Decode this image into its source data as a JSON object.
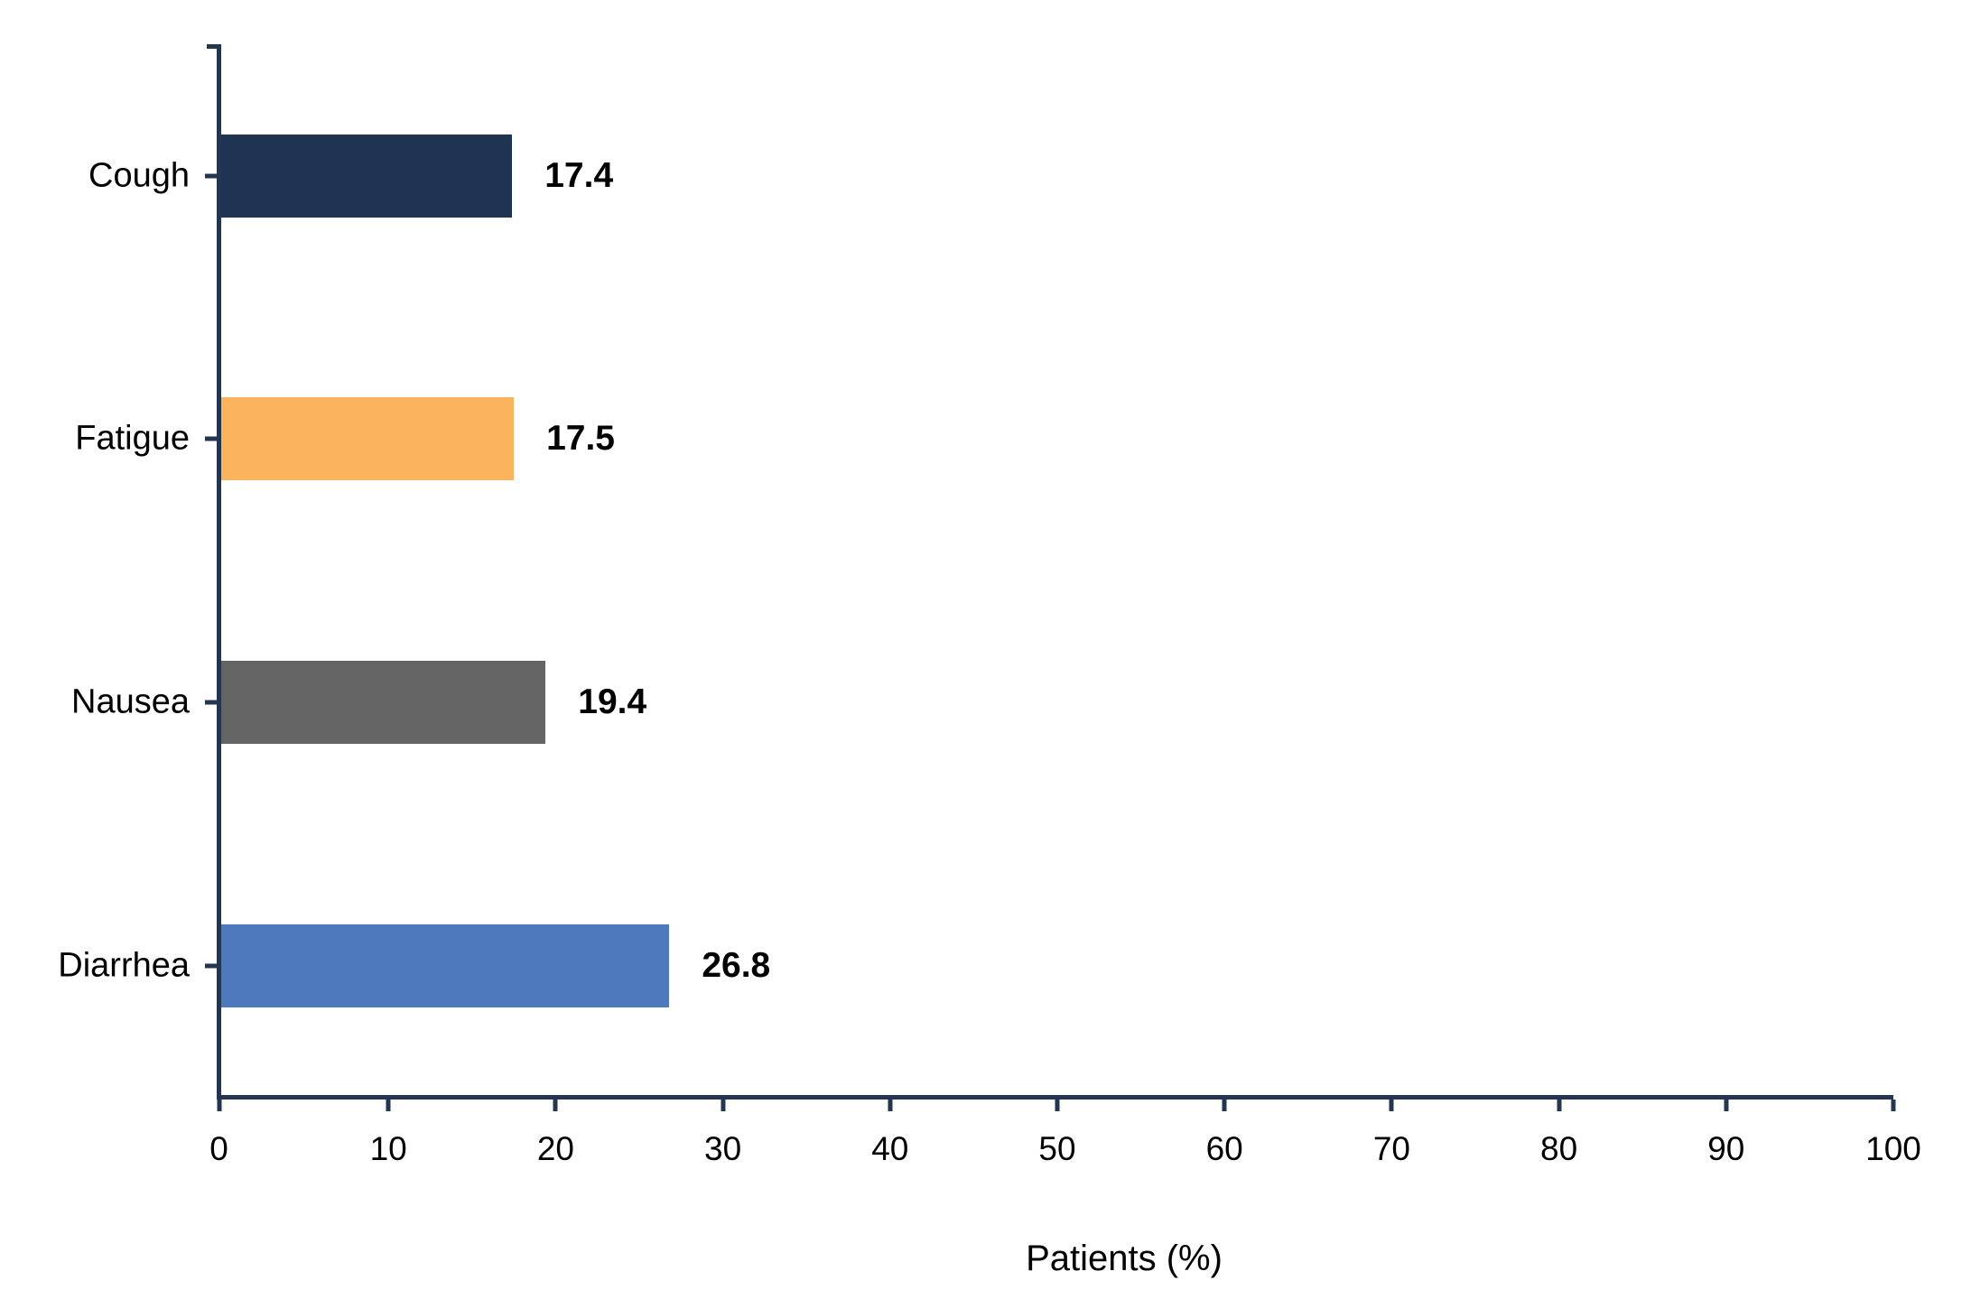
{
  "chart_data": {
    "type": "bar",
    "orientation": "horizontal",
    "title": "",
    "xlabel": "Patients (%)",
    "ylabel": "",
    "categories": [
      "Cough",
      "Fatigue",
      "Nausea",
      "Diarrhea"
    ],
    "values": [
      17.4,
      17.5,
      19.4,
      26.8
    ],
    "value_labels": [
      "17.4",
      "17.5",
      "19.4",
      "26.8"
    ],
    "bar_colors": [
      "#1F3453",
      "#FBB35D",
      "#646464",
      "#4E79BD"
    ],
    "xlim": [
      0,
      100
    ],
    "x_ticks": [
      0,
      10,
      20,
      30,
      40,
      50,
      60,
      70,
      80,
      90,
      100
    ],
    "grid": false,
    "legend": false,
    "data_labels_bold": true,
    "axis_color": "#24364F",
    "text_color": "#000000",
    "background_color": "#FFFFFF"
  }
}
